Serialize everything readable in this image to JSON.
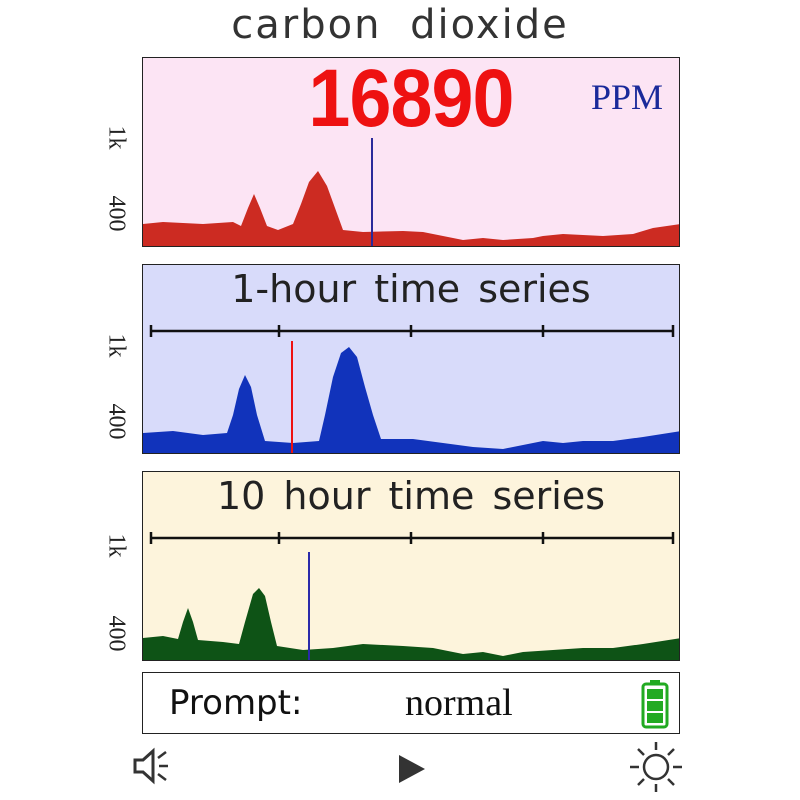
{
  "title": "carbon dioxide",
  "reading": {
    "value": "16890",
    "unit": "PPM"
  },
  "y_labels": {
    "top": "1k",
    "bottom": "400"
  },
  "panels": [
    {
      "id": "live",
      "title": "",
      "fill": "#cc2b22",
      "bg": "#fce4f4",
      "cursor_color": "#2a2a9a"
    },
    {
      "id": "hour1",
      "title": "1-hour time series",
      "fill": "#1133bb",
      "bg": "#d8dbfa",
      "cursor_color": "#ee1111"
    },
    {
      "id": "hour10",
      "title": "10 hour time series",
      "fill": "#0e5316",
      "bg": "#fdf4dc",
      "cursor_color": "#2a2aaa"
    }
  ],
  "prompt": {
    "label": "Prompt:",
    "value": "normal"
  },
  "battery": {
    "level": 1.0,
    "color": "#22aa22"
  },
  "controls": [
    {
      "name": "volume-icon"
    },
    {
      "name": "play-icon"
    },
    {
      "name": "brightness-icon"
    }
  ]
}
